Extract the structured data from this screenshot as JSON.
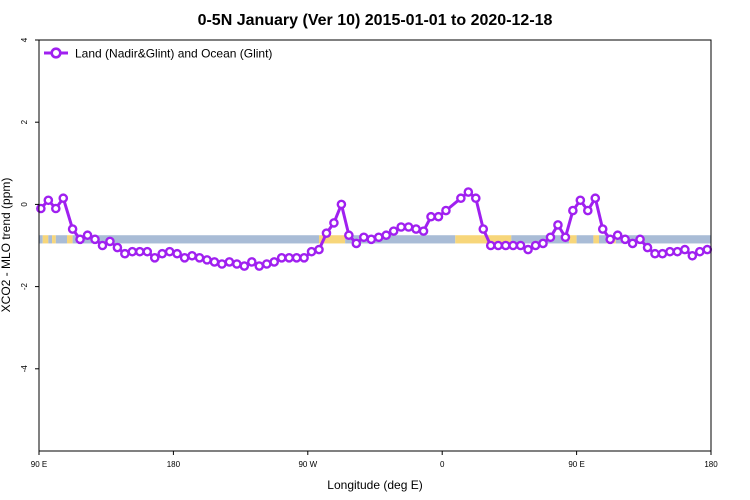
{
  "chart_data": {
    "type": "line",
    "title": "0-5N January (Ver 10)   2015-01-01 to 2020-12-18",
    "xlabel": "Longitude (deg E)",
    "ylabel": "XCO2 - MLO trend (ppm)",
    "xlim": [
      90,
      450
    ],
    "ylim": [
      -6,
      4
    ],
    "x_ticks": [
      {
        "value": 90,
        "label": "90 E"
      },
      {
        "value": 162,
        "label": "180"
      },
      {
        "value": 234,
        "label": "90 W"
      },
      {
        "value": 306,
        "label": "0"
      },
      {
        "value": 378,
        "label": "90 E"
      },
      {
        "value": 450,
        "label": "180"
      }
    ],
    "y_ticks": [
      {
        "value": 4,
        "label": "4"
      },
      {
        "value": 2,
        "label": "2"
      },
      {
        "value": 0,
        "label": "0"
      },
      {
        "value": -2,
        "label": "-2"
      },
      {
        "value": -4,
        "label": "-4"
      }
    ],
    "grid": false,
    "legend": {
      "position": "top-left",
      "entries": [
        "Land (Nadir&Glint) and Ocean (Glint)"
      ]
    },
    "colors": {
      "series": "#a020f0",
      "ocean": "#a9bcd6",
      "land": "#f7d67a"
    },
    "surface_band": {
      "y_range": [
        -0.95,
        -0.75
      ],
      "segments": [
        {
          "type": "ocean",
          "x0": 90,
          "x1": 92
        },
        {
          "type": "land",
          "x0": 92,
          "x1": 95
        },
        {
          "type": "ocean",
          "x0": 95,
          "x1": 97
        },
        {
          "type": "land",
          "x0": 97,
          "x1": 99
        },
        {
          "type": "ocean",
          "x0": 99,
          "x1": 105
        },
        {
          "type": "land",
          "x0": 105,
          "x1": 108
        },
        {
          "type": "ocean",
          "x0": 108,
          "x1": 240
        },
        {
          "type": "land",
          "x0": 240,
          "x1": 254
        },
        {
          "type": "ocean",
          "x0": 254,
          "x1": 313
        },
        {
          "type": "land",
          "x0": 313,
          "x1": 343
        },
        {
          "type": "ocean",
          "x0": 343,
          "x1": 374
        },
        {
          "type": "land",
          "x0": 374,
          "x1": 378
        },
        {
          "type": "ocean",
          "x0": 378,
          "x1": 387
        },
        {
          "type": "land",
          "x0": 387,
          "x1": 390
        },
        {
          "type": "ocean",
          "x0": 390,
          "x1": 394
        },
        {
          "type": "land",
          "x0": 394,
          "x1": 399
        },
        {
          "type": "ocean",
          "x0": 399,
          "x1": 450
        }
      ]
    },
    "series": [
      {
        "name": "Land (Nadir&Glint) and Ocean (Glint)",
        "color": "#a020f0",
        "x": [
          91,
          95,
          99,
          103,
          108,
          112,
          116,
          120,
          124,
          128,
          132,
          136,
          140,
          144,
          148,
          152,
          156,
          160,
          164,
          168,
          172,
          176,
          180,
          184,
          188,
          192,
          196,
          200,
          204,
          208,
          212,
          216,
          220,
          224,
          228,
          232,
          236,
          240,
          244,
          248,
          252,
          256,
          260,
          264,
          268,
          272,
          276,
          280,
          284,
          288,
          292,
          296,
          300,
          304,
          308,
          316,
          320,
          324,
          328,
          332,
          336,
          340,
          344,
          348,
          352,
          356,
          360,
          364,
          368,
          372,
          376,
          380,
          384,
          388,
          392,
          396,
          400,
          404,
          408,
          412,
          416,
          420,
          424,
          428,
          432,
          436,
          440,
          444,
          448
        ],
        "values": [
          -0.1,
          0.1,
          -0.1,
          0.15,
          -0.6,
          -0.85,
          -0.75,
          -0.85,
          -1.0,
          -0.9,
          -1.05,
          -1.2,
          -1.15,
          -1.15,
          -1.15,
          -1.3,
          -1.2,
          -1.15,
          -1.2,
          -1.3,
          -1.25,
          -1.3,
          -1.35,
          -1.4,
          -1.45,
          -1.4,
          -1.45,
          -1.5,
          -1.4,
          -1.5,
          -1.45,
          -1.4,
          -1.3,
          -1.3,
          -1.3,
          -1.3,
          -1.15,
          -1.1,
          -0.7,
          -0.45,
          0.0,
          -0.75,
          -0.95,
          -0.8,
          -0.85,
          -0.8,
          -0.75,
          -0.65,
          -0.55,
          -0.55,
          -0.6,
          -0.65,
          -0.3,
          -0.3,
          -0.15,
          0.15,
          0.3,
          0.15,
          -0.6,
          -1.0,
          -1.0,
          -1.0,
          -1.0,
          -1.0,
          -1.1,
          -1.0,
          -0.95,
          -0.8,
          -0.5,
          -0.8,
          -0.15,
          0.1,
          -0.15,
          0.15,
          -0.6,
          -0.85,
          -0.75,
          -0.85,
          -0.95,
          -0.85,
          -1.05,
          -1.2,
          -1.2,
          -1.15,
          -1.15,
          -1.1,
          -1.25,
          -1.15,
          -1.1
        ]
      }
    ]
  }
}
